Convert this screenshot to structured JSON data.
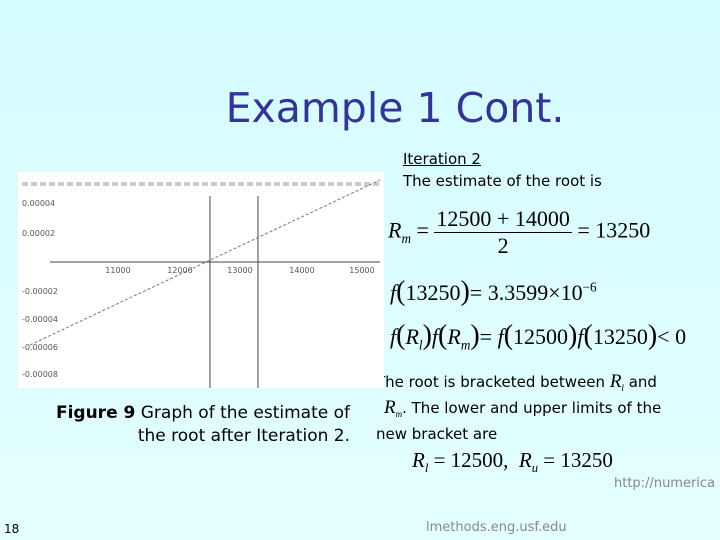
{
  "slide": {
    "title": "Example 1 Cont.",
    "iteration": "Iteration 2",
    "intro": "The estimate of the root is",
    "eq1": {
      "lhs": "R",
      "lhs_sub": "m",
      "num": "12500 + 14000",
      "den": "2",
      "rhs": "13250"
    },
    "eq2": {
      "arg": "13250",
      "mant": "3.3599",
      "exp": "−6"
    },
    "eq3": {
      "a": "R",
      "a_sub": "l",
      "b": "R",
      "b_sub": "m",
      "c": "12500",
      "d": "13250",
      "rel": "< 0"
    },
    "bracket_text": {
      "p1": "The root is bracketed between",
      "v1": "R",
      "v1_sub": "l",
      "p2": "and",
      "v2": "R",
      "v2_sub": "m",
      "p3": ". The lower and upper limits of the new bracket are"
    },
    "eq4": {
      "l": "R",
      "l_sub": "l",
      "lv": "12500",
      "u": "R",
      "u_sub": "u",
      "uv": "13250"
    },
    "figure": {
      "label": "Figure 9",
      "caption": "Graph of the estimate of the root after Iteration 2."
    },
    "graph": {
      "xticks": [
        "11000",
        "12000",
        "13000",
        "14000",
        "15000"
      ],
      "yticks": [
        "0.00004",
        "0.00002",
        "-0.00002",
        "-0.00004",
        "-0.00006",
        "-0.00008"
      ]
    },
    "page_number": "18",
    "footer_a": "http://numerica",
    "footer_b": "lmethods.eng.usf.edu"
  }
}
